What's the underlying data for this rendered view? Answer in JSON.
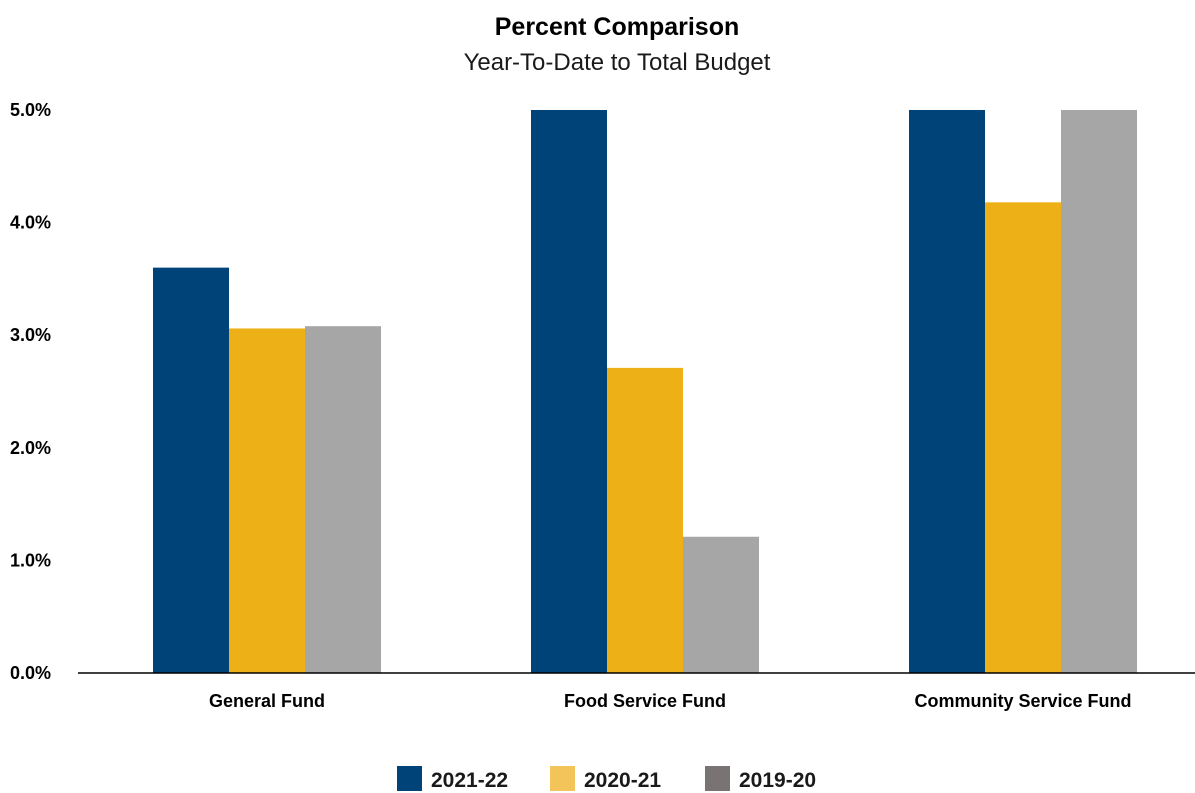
{
  "chart_data": {
    "type": "bar",
    "title": "Percent Comparison",
    "subtitle": "Year-To-Date to Total Budget",
    "xlabel": "",
    "ylabel": "",
    "categories": [
      "General Fund",
      "Food Service Fund",
      "Community Service Fund"
    ],
    "series": [
      {
        "name": "2021-22",
        "color": "#004379",
        "values": [
          3.6,
          5.0,
          5.0
        ]
      },
      {
        "name": "2020-21",
        "color": "#edb117",
        "values": [
          3.06,
          2.71,
          4.18
        ]
      },
      {
        "name": "2019-20",
        "color": "#a6a6a6",
        "values": [
          3.08,
          1.21,
          5.0
        ]
      }
    ],
    "legend_swatch_colors": [
      "#004379",
      "#f2c45a",
      "#797373"
    ],
    "y_ticks": [
      {
        "value": 0,
        "label": "0.0%"
      },
      {
        "value": 1,
        "label": "1.0%"
      },
      {
        "value": 2,
        "label": "2.0%"
      },
      {
        "value": 3,
        "label": "3.0%"
      },
      {
        "value": 4,
        "label": "4.0%"
      },
      {
        "value": 5,
        "label": "5.0%"
      }
    ],
    "ylim": [
      0,
      5
    ],
    "grid": false,
    "legend_position": "bottom-center"
  }
}
